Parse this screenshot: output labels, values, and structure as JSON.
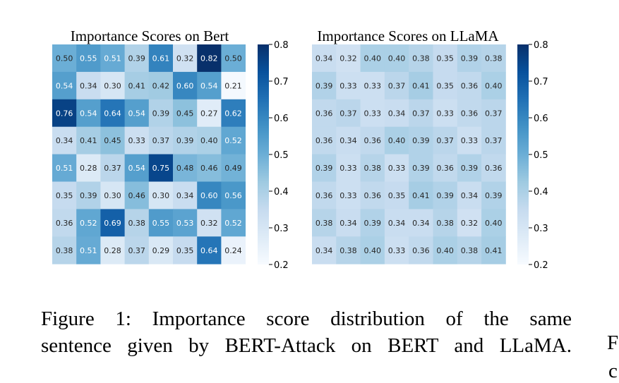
{
  "chart_data": [
    {
      "type": "heatmap",
      "title": "Importance Scores on Bert",
      "rows": 8,
      "cols": 8,
      "values": [
        [
          0.5,
          0.55,
          0.51,
          0.39,
          0.61,
          0.32,
          0.82,
          0.5
        ],
        [
          0.54,
          0.34,
          0.3,
          0.41,
          0.42,
          0.6,
          0.54,
          0.21
        ],
        [
          0.76,
          0.54,
          0.64,
          0.54,
          0.39,
          0.45,
          0.27,
          0.62
        ],
        [
          0.34,
          0.41,
          0.45,
          0.33,
          0.37,
          0.39,
          0.4,
          0.52
        ],
        [
          0.51,
          0.28,
          0.37,
          0.54,
          0.75,
          0.48,
          0.46,
          0.49
        ],
        [
          0.35,
          0.39,
          0.3,
          0.46,
          0.3,
          0.34,
          0.6,
          0.56
        ],
        [
          0.36,
          0.52,
          0.69,
          0.38,
          0.55,
          0.53,
          0.32,
          0.52
        ],
        [
          0.38,
          0.51,
          0.28,
          0.37,
          0.29,
          0.35,
          0.64,
          0.24
        ]
      ],
      "colorbar": {
        "min": 0.2,
        "max": 0.8,
        "ticks": [
          "0.2",
          "0.3",
          "0.4",
          "0.5",
          "0.6",
          "0.7",
          "0.8"
        ]
      },
      "colormap": "Blues"
    },
    {
      "type": "heatmap",
      "title": "Importance Scores on LLaMA",
      "rows": 8,
      "cols": 8,
      "values": [
        [
          0.34,
          0.32,
          0.4,
          0.4,
          0.38,
          0.35,
          0.39,
          0.38
        ],
        [
          0.39,
          0.33,
          0.33,
          0.37,
          0.41,
          0.35,
          0.36,
          0.4
        ],
        [
          0.36,
          0.37,
          0.33,
          0.34,
          0.37,
          0.33,
          0.36,
          0.37
        ],
        [
          0.36,
          0.34,
          0.36,
          0.4,
          0.39,
          0.37,
          0.33,
          0.37
        ],
        [
          0.39,
          0.33,
          0.38,
          0.33,
          0.39,
          0.36,
          0.39,
          0.36
        ],
        [
          0.36,
          0.33,
          0.36,
          0.35,
          0.41,
          0.39,
          0.34,
          0.39
        ],
        [
          0.38,
          0.34,
          0.39,
          0.34,
          0.34,
          0.38,
          0.32,
          0.4
        ],
        [
          0.34,
          0.38,
          0.4,
          0.33,
          0.36,
          0.4,
          0.38,
          0.41
        ]
      ],
      "colorbar": {
        "min": 0.2,
        "max": 0.8,
        "ticks": [
          "0.2",
          "0.3",
          "0.4",
          "0.5",
          "0.6",
          "0.7",
          "0.8"
        ]
      },
      "colormap": "Blues"
    }
  ],
  "caption": {
    "line1": "Figure 1: Importance score distribution of the same",
    "line2": "sentence given by BERT-Attack on BERT and LLaMA."
  },
  "edge_text": {
    "top": "F",
    "bottom": "c"
  }
}
